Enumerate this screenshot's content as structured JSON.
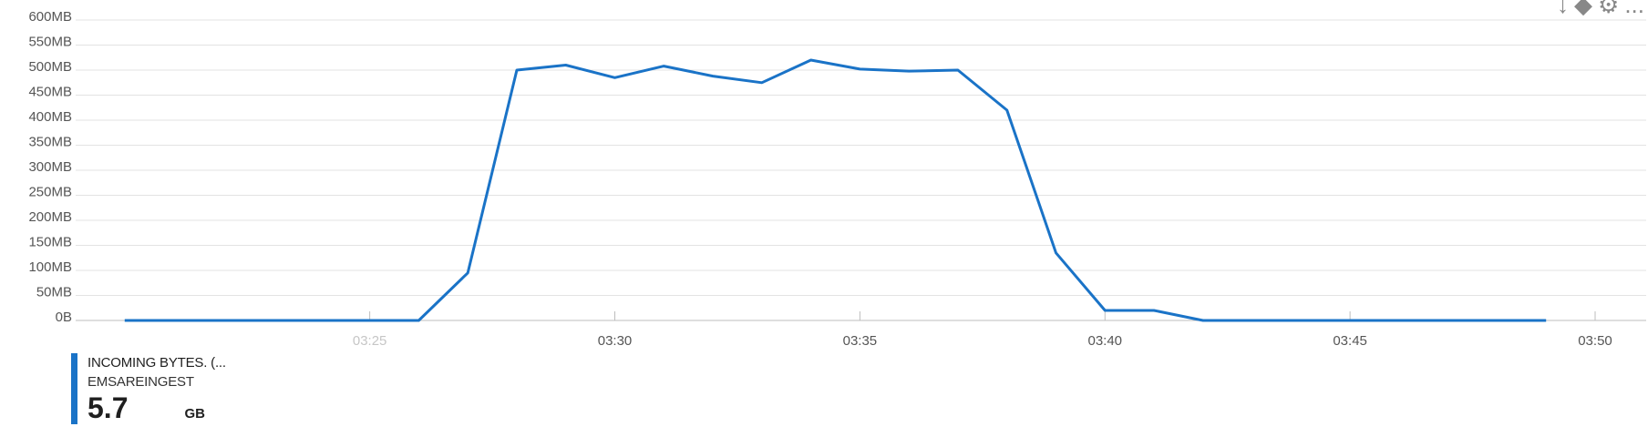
{
  "toolbar": {
    "icons": [
      "pin-icon",
      "diamond-icon",
      "gear-icon",
      "more-icon"
    ],
    "more_label": "..."
  },
  "legend": {
    "metric": "INCOMING BYTES. (...",
    "resource": "EMSAREINGEST",
    "value": "5.7",
    "unit": "GB",
    "color": "#1a73c7"
  },
  "chart_data": {
    "type": "line",
    "y_ticks": [
      "0B",
      "50MB",
      "100MB",
      "150MB",
      "200MB",
      "250MB",
      "300MB",
      "350MB",
      "400MB",
      "450MB",
      "500MB",
      "550MB",
      "600MB"
    ],
    "y_unit": "MB",
    "ylim": [
      0,
      600
    ],
    "x_ticks": [
      {
        "label": "03:25",
        "time": "03:25",
        "faded": true
      },
      {
        "label": "03:30",
        "time": "03:30",
        "faded": false
      },
      {
        "label": "03:35",
        "time": "03:35",
        "faded": false
      },
      {
        "label": "03:40",
        "time": "03:40",
        "faded": false
      },
      {
        "label": "03:45",
        "time": "03:45",
        "faded": false
      },
      {
        "label": "03:50",
        "time": "03:50",
        "faded": false
      }
    ],
    "xlim": [
      "03:19",
      "03:50"
    ],
    "grid": true,
    "series": [
      {
        "color": "#1a73c7",
        "x": [
          "03:20",
          "03:21",
          "03:22",
          "03:23",
          "03:24",
          "03:25",
          "03:26",
          "03:27",
          "03:28",
          "03:29",
          "03:30",
          "03:31",
          "03:32",
          "03:33",
          "03:34",
          "03:35",
          "03:36",
          "03:37",
          "03:38",
          "03:39",
          "03:40",
          "03:41",
          "03:42",
          "03:43",
          "03:44",
          "03:45",
          "03:46",
          "03:47",
          "03:48",
          "03:49"
        ],
        "values": [
          0,
          0,
          0,
          0,
          0,
          0,
          0,
          95,
          500,
          510,
          485,
          508,
          488,
          475,
          520,
          502,
          498,
          500,
          420,
          135,
          20,
          20,
          0,
          0,
          0,
          0,
          0,
          0,
          0,
          0
        ]
      }
    ]
  }
}
